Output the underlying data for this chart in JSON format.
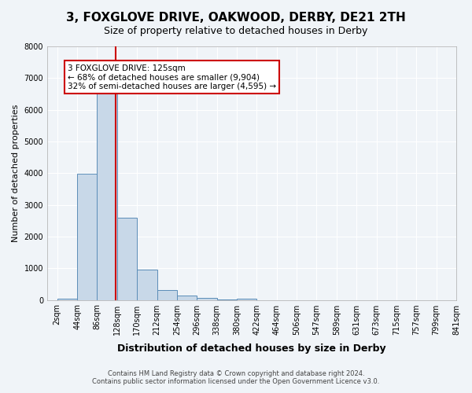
{
  "title": "3, FOXGLOVE DRIVE, OAKWOOD, DERBY, DE21 2TH",
  "subtitle": "Size of property relative to detached houses in Derby",
  "xlabel": "Distribution of detached houses by size in Derby",
  "ylabel": "Number of detached properties",
  "footer_line1": "Contains HM Land Registry data © Crown copyright and database right 2024.",
  "footer_line2": "Contains public sector information licensed under the Open Government Licence v3.0.",
  "bin_labels": [
    "2sqm",
    "44sqm",
    "86sqm",
    "128sqm",
    "170sqm",
    "212sqm",
    "254sqm",
    "296sqm",
    "338sqm",
    "380sqm",
    "422sqm",
    "464sqm",
    "506sqm",
    "547sqm",
    "589sqm",
    "631sqm",
    "673sqm",
    "715sqm",
    "757sqm",
    "799sqm",
    "841sqm"
  ],
  "bar_values": [
    50,
    3980,
    6550,
    2600,
    960,
    310,
    130,
    60,
    10,
    50,
    0,
    0,
    0,
    0,
    0,
    0,
    0,
    0,
    0,
    0
  ],
  "ylim": [
    0,
    8000
  ],
  "yticks": [
    0,
    1000,
    2000,
    3000,
    4000,
    5000,
    6000,
    7000,
    8000
  ],
  "bar_color": "#c8d8e8",
  "bar_edge_color": "#5b8db8",
  "property_line_x": 2.93,
  "annotation_text": "3 FOXGLOVE DRIVE: 125sqm\n← 68% of detached houses are smaller (9,904)\n32% of semi-detached houses are larger (4,595) →",
  "annotation_box_color": "#ffffff",
  "annotation_box_edge_color": "#cc0000",
  "vline_color": "#cc0000",
  "background_color": "#f0f4f8",
  "plot_background_color": "#f0f4f8",
  "grid_color": "#ffffff"
}
